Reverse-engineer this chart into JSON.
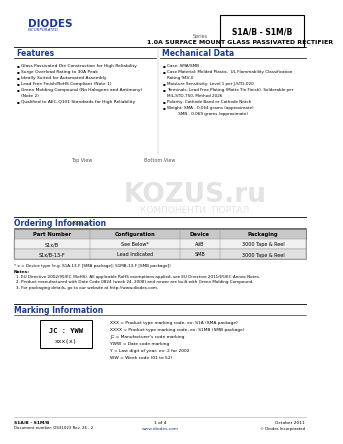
{
  "title_part": "S1A/B - S1M/B",
  "title_main": "1.0A SURFACE MOUNT GLASS PASSIVATED RECTIFIER",
  "series_label": "Series",
  "logo_text": "DIODES",
  "logo_sub": "INCORPORATED",
  "features_title": "Features",
  "features": [
    "Glass Passivated Die Construction for High Reliability",
    "Surge Overload Rating to 30A Peak",
    "Ideally Suited for Automated Assembly",
    "Lead Free Finish/RoHS Compliant (Note 1)",
    "Green Molding Compound (No Halogens and Antimony)\n(Note 2)",
    "Qualified to AEC-Q101 Standards for High Reliability"
  ],
  "mech_title": "Mechanical Data",
  "mech": [
    "Case: SMA/SMB",
    "Case Material: Molded Plastic.  UL Flammability Classification\nRating 94V-0",
    "Moisture Sensitivity: Level 1 per J-STD-020",
    "Terminals: Lead Free Plating (Matte Tin Finish). Solderable per\nMIL-STD-750, Method 2026",
    "Polarity: Cathode Band or Cathode Notch",
    "Weight: SMA - 0.064 grams (approximate)\n         SMB - 0.069 grams (approximate)"
  ],
  "ordering_title": "Ordering Information",
  "ordering_note": "(Note 3)",
  "ordering_headers": [
    "Part Number",
    "Configuration",
    "Device",
    "Packaging"
  ],
  "ordering_rows": [
    [
      "S1x/B",
      "See Below*",
      "AiiB",
      "3000 Tape & Reel"
    ],
    [
      "S1x/B-13-F",
      "Lead Indicated",
      "SMB",
      "3000 Tape & Reel"
    ]
  ],
  "ordering_footnote": "* x = Device type (e.g. S1A-13-F [SMA package]; S1MB-13-F [SMB package])",
  "notes_title": "Notes:",
  "notes": [
    "1. EU Directive 2002/95/EC (RoHS). All applicable RoHS exemptions applied, see EU Directive 2011/65/EC Annex Notes.",
    "2. Product manufactured with Date Code 0824 (week 24, 2008) and newer are built with Green Molding Compound.",
    "3. For packaging details, go to our website at http://www.diodes.com."
  ],
  "marking_title": "Marking Information",
  "marking_desc": [
    "XXX = Product type marking code, ex: S1A (SMA package)",
    "XXXX = Product type marking code, ex: S1MB (SMB package)",
    "JC = Manufacturer's code marking",
    "YWW = Date code marking",
    "Y = Last digit of year, ex: 2 for 2002",
    "WW = Week code (01 to 52)"
  ],
  "marking_box_line1": "JC : YWW",
  "marking_box_line2": "xxx(x)",
  "footer_left": "S1A/B - S1M/B\nDocument number: DS31023 Rev. 26 - 2",
  "footer_center": "www.diodes.com",
  "footer_right": "October 2011\n© Diodes Incorporated",
  "footer_page": "1 of 4",
  "bg_color": "#ffffff",
  "header_color": "#1a3a8a",
  "section_title_color": "#1a3a8a",
  "line_color": "#000000",
  "text_color": "#000000",
  "table_header_bg": "#c8c8c8",
  "table_row_bg": [
    "#f0f0f0",
    "#e0e0e0"
  ],
  "watermark_text": "KOZUS.ru",
  "watermark_subtext": "КОМПОНЕНТИ  ПОРТАЛ"
}
